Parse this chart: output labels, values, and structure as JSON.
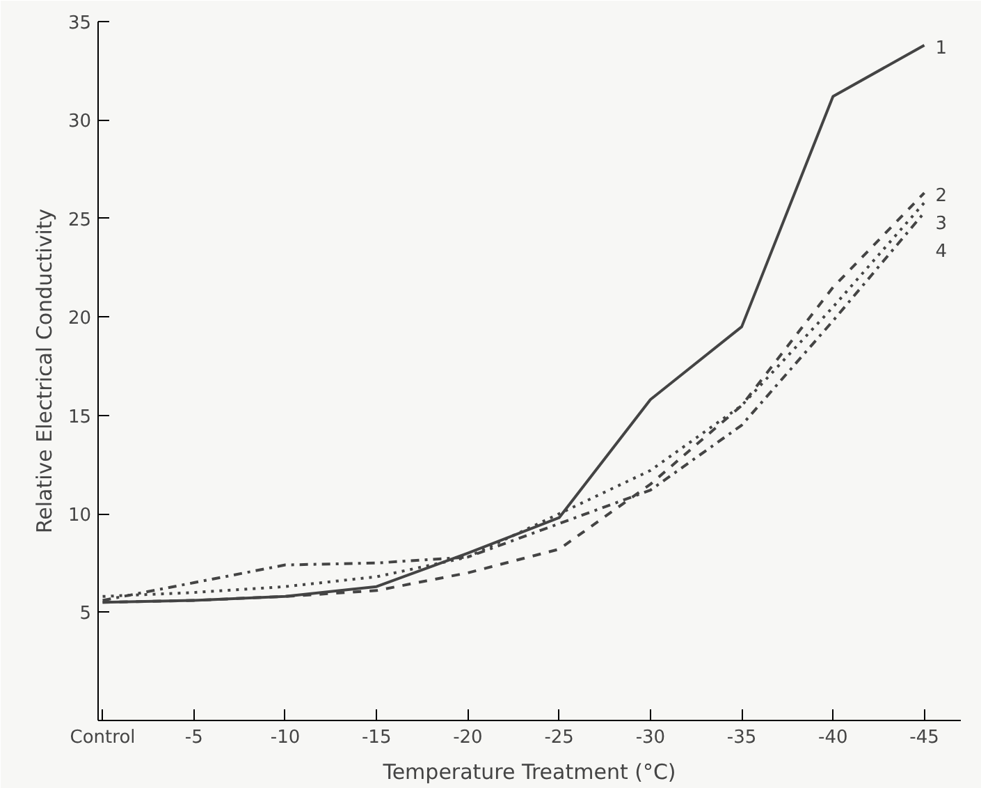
{
  "chart_data": {
    "type": "line",
    "xlabel": "Temperature Treatment (°C)",
    "ylabel": "Relative Electrical Conductivity",
    "categories": [
      "Control",
      "-5",
      "-10",
      "-15",
      "-20",
      "-25",
      "-30",
      "-35",
      "-40",
      "-45"
    ],
    "series": [
      {
        "name": "1",
        "color": "#444444",
        "line_style": "solid",
        "values": [
          5.5,
          5.6,
          5.8,
          6.3,
          8.0,
          9.8,
          15.8,
          19.5,
          31.2,
          33.8
        ]
      },
      {
        "name": "2",
        "color": "#444444",
        "line_style": "dashed",
        "values": [
          5.5,
          5.6,
          5.8,
          6.1,
          7.0,
          8.2,
          11.5,
          15.5,
          21.5,
          26.3
        ]
      },
      {
        "name": "3",
        "color": "#444444",
        "line_style": "dotted",
        "values": [
          5.8,
          6.0,
          6.3,
          6.8,
          7.8,
          10.0,
          12.2,
          15.5,
          20.5,
          25.8
        ]
      },
      {
        "name": "4",
        "color": "#444444",
        "line_style": "dashdot",
        "values": [
          5.6,
          6.5,
          7.4,
          7.5,
          7.8,
          9.5,
          11.2,
          14.5,
          19.8,
          25.3
        ]
      }
    ],
    "ylim": [
      -0.5,
      35
    ],
    "yticks": [
      5,
      10,
      15,
      20,
      25,
      30,
      35
    ],
    "grid": false,
    "marker": "none"
  }
}
